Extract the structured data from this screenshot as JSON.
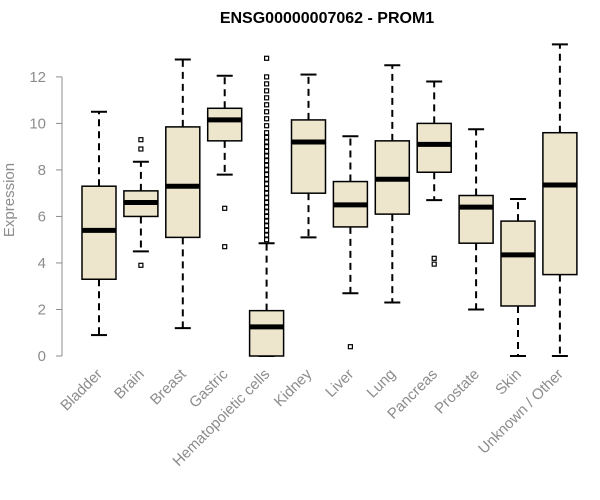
{
  "chart_data": {
    "type": "boxplot",
    "title": "ENSG00000007062 - PROM1",
    "xlabel": "",
    "ylabel": "Expression",
    "ylim": [
      0,
      13.5
    ],
    "yticks": [
      0,
      2,
      4,
      6,
      8,
      10,
      12
    ],
    "colors": {
      "box_fill": "#ede6cd",
      "outline": "#000000",
      "median": "#000000",
      "axis": "#8c8c8c"
    },
    "categories": [
      "Bladder",
      "Brain",
      "Breast",
      "Gastric",
      "Hematopoietic cells",
      "Kidney",
      "Liver",
      "Lung",
      "Pancreas",
      "Prostate",
      "Skin",
      "Unknown / Other"
    ],
    "boxes": [
      {
        "name": "Bladder",
        "whisker_low": 0.9,
        "q1": 3.3,
        "median": 5.4,
        "q3": 7.3,
        "whisker_high": 10.5,
        "outliers": []
      },
      {
        "name": "Brain",
        "whisker_low": 4.5,
        "q1": 6.0,
        "median": 6.6,
        "q3": 7.1,
        "whisker_high": 8.35,
        "outliers": [
          3.9,
          8.9,
          9.3
        ]
      },
      {
        "name": "Breast",
        "whisker_low": 1.2,
        "q1": 5.1,
        "median": 7.3,
        "q3": 9.85,
        "whisker_high": 12.75,
        "outliers": []
      },
      {
        "name": "Gastric",
        "whisker_low": 7.8,
        "q1": 9.25,
        "median": 10.15,
        "q3": 10.65,
        "whisker_high": 12.05,
        "outliers": [
          4.7,
          6.35
        ]
      },
      {
        "name": "Hematopoietic cells",
        "whisker_low": 0.0,
        "q1": 0.0,
        "median": 1.25,
        "q3": 1.95,
        "whisker_high": 4.85,
        "outliers": [
          5.0,
          5.2,
          5.4,
          5.6,
          5.8,
          6.0,
          6.2,
          6.4,
          6.6,
          6.8,
          7.0,
          7.2,
          7.4,
          7.6,
          7.8,
          8.0,
          8.2,
          8.4,
          8.6,
          8.8,
          9.0,
          9.2,
          9.4,
          9.6,
          9.9,
          10.2,
          10.5,
          10.8,
          11.1,
          11.4,
          11.7,
          12.0,
          12.8
        ]
      },
      {
        "name": "Kidney",
        "whisker_low": 5.1,
        "q1": 7.0,
        "median": 9.2,
        "q3": 10.15,
        "whisker_high": 12.1,
        "outliers": []
      },
      {
        "name": "Liver",
        "whisker_low": 2.7,
        "q1": 5.55,
        "median": 6.5,
        "q3": 7.5,
        "whisker_high": 9.45,
        "outliers": [
          0.4
        ]
      },
      {
        "name": "Lung",
        "whisker_low": 2.3,
        "q1": 6.1,
        "median": 7.6,
        "q3": 9.25,
        "whisker_high": 12.5,
        "outliers": []
      },
      {
        "name": "Pancreas",
        "whisker_low": 6.7,
        "q1": 7.9,
        "median": 9.1,
        "q3": 10.0,
        "whisker_high": 11.8,
        "outliers": [
          3.95,
          4.2
        ]
      },
      {
        "name": "Prostate",
        "whisker_low": 2.0,
        "q1": 4.85,
        "median": 6.4,
        "q3": 6.9,
        "whisker_high": 9.75,
        "outliers": []
      },
      {
        "name": "Skin",
        "whisker_low": 0.0,
        "q1": 2.15,
        "median": 4.35,
        "q3": 5.8,
        "whisker_high": 6.75,
        "outliers": []
      },
      {
        "name": "Unknown / Other",
        "whisker_low": 0.0,
        "q1": 3.5,
        "median": 7.35,
        "q3": 9.6,
        "whisker_high": 13.4,
        "outliers": []
      }
    ]
  }
}
